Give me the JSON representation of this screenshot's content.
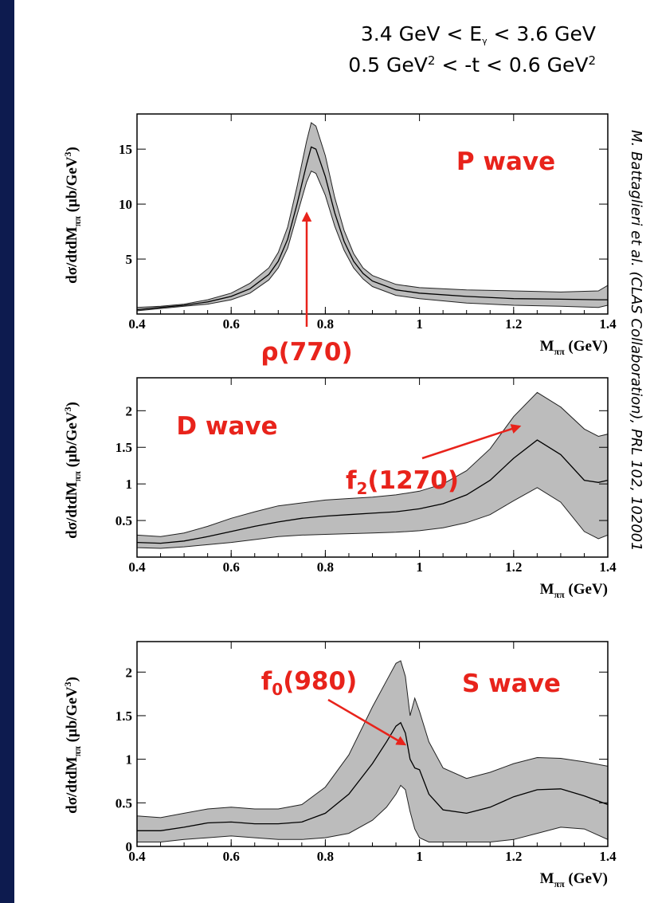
{
  "header": {
    "line1": {
      "left": "3.4 GeV < E",
      "sub": "γ",
      "right": " < 3.6 GeV"
    },
    "line2": {
      "left": "0.5 GeV",
      "sup1": "2",
      "mid": " < -t < 0.6 GeV",
      "sup2": "2"
    }
  },
  "citation": "M. Battaglieri et al. (CLAS Collaboration), PRL 102, 102001",
  "colors": {
    "background": "#0d1b4f",
    "band": "#bcbcbc",
    "curve": "#000000",
    "annotation": "#e8231b"
  },
  "chart_data": [
    {
      "type": "line",
      "ylabel": "dσ/dtdM",
      "ylabel_sub": "ππ",
      "ylabel_unit": " (μb/GeV",
      "ylabel_unit_sup": "3",
      "ylabel_close": ")",
      "xlabel": "M",
      "xlabel_sub": "ππ",
      "xlabel_unit": " (GeV)",
      "xlim": [
        0.4,
        1.4
      ],
      "ylim": [
        0,
        18.2
      ],
      "xticks": [
        0.4,
        0.6,
        0.8,
        1,
        1.2,
        1.4
      ],
      "xtick_labels": [
        "0.4",
        "0.6",
        "0.8",
        "1",
        "1.2",
        "1.4"
      ],
      "yticks": [
        5,
        10,
        15
      ],
      "ytick_labels": [
        "5",
        "10",
        "15"
      ],
      "wave_label": "P wave",
      "annotation": {
        "label": "ρ(770)",
        "x": 0.77,
        "y": 10.0
      },
      "x": [
        0.4,
        0.45,
        0.5,
        0.55,
        0.6,
        0.64,
        0.68,
        0.7,
        0.72,
        0.74,
        0.76,
        0.77,
        0.78,
        0.8,
        0.82,
        0.84,
        0.86,
        0.88,
        0.9,
        0.95,
        1.0,
        1.1,
        1.2,
        1.3,
        1.38,
        1.4
      ],
      "y": [
        0.4,
        0.6,
        0.8,
        1.1,
        1.6,
        2.3,
        3.6,
        4.8,
        6.8,
        10.0,
        13.6,
        15.2,
        15.0,
        12.5,
        9.2,
        6.6,
        4.8,
        3.7,
        3.0,
        2.2,
        1.9,
        1.6,
        1.4,
        1.35,
        1.3,
        1.3
      ],
      "y_low": [
        0.3,
        0.5,
        0.7,
        0.9,
        1.3,
        1.9,
        3.1,
        4.2,
        6.0,
        9.0,
        12.0,
        13.0,
        12.8,
        10.8,
        8.0,
        5.8,
        4.2,
        3.2,
        2.5,
        1.7,
        1.4,
        1.0,
        0.8,
        0.7,
        0.6,
        0.8
      ],
      "y_high": [
        0.6,
        0.7,
        0.9,
        1.3,
        1.9,
        2.8,
        4.2,
        5.6,
        7.9,
        11.6,
        15.7,
        17.4,
        17.1,
        14.4,
        10.6,
        7.6,
        5.5,
        4.2,
        3.5,
        2.7,
        2.4,
        2.2,
        2.1,
        2.0,
        2.1,
        2.6
      ]
    },
    {
      "type": "line",
      "ylabel": "dσ/dtdM",
      "ylabel_sub": "ππ",
      "ylabel_unit": " (μb/GeV",
      "ylabel_unit_sup": "3",
      "ylabel_close": ")",
      "xlabel": "M",
      "xlabel_sub": "ππ",
      "xlabel_unit": " (GeV)",
      "xlim": [
        0.4,
        1.4
      ],
      "ylim": [
        0,
        2.45
      ],
      "xticks": [
        0.4,
        0.6,
        0.8,
        1,
        1.2,
        1.4
      ],
      "xtick_labels": [
        "0.4",
        "0.6",
        "0.8",
        "1",
        "1.2",
        "1.4"
      ],
      "yticks": [
        0.5,
        1,
        1.5,
        2
      ],
      "ytick_labels": [
        "0.5",
        "1",
        "1.5",
        "2"
      ],
      "wave_label": "D wave",
      "annotation": {
        "label": "f",
        "label_sub": "2",
        "label_rest": "(1270)",
        "x": 1.25,
        "y": 2.05
      },
      "x": [
        0.4,
        0.45,
        0.5,
        0.55,
        0.6,
        0.65,
        0.7,
        0.75,
        0.8,
        0.85,
        0.9,
        0.95,
        1.0,
        1.05,
        1.1,
        1.15,
        1.2,
        1.25,
        1.3,
        1.35,
        1.38,
        1.4
      ],
      "y": [
        0.2,
        0.19,
        0.22,
        0.28,
        0.35,
        0.42,
        0.48,
        0.53,
        0.56,
        0.58,
        0.6,
        0.62,
        0.66,
        0.73,
        0.85,
        1.05,
        1.35,
        1.6,
        1.4,
        1.05,
        1.02,
        1.05
      ],
      "y_low": [
        0.13,
        0.12,
        0.14,
        0.17,
        0.2,
        0.24,
        0.28,
        0.3,
        0.31,
        0.32,
        0.33,
        0.34,
        0.36,
        0.4,
        0.47,
        0.58,
        0.77,
        0.95,
        0.75,
        0.35,
        0.25,
        0.3
      ],
      "y_high": [
        0.3,
        0.28,
        0.33,
        0.42,
        0.53,
        0.62,
        0.7,
        0.74,
        0.78,
        0.8,
        0.82,
        0.85,
        0.9,
        1.0,
        1.18,
        1.48,
        1.92,
        2.25,
        2.05,
        1.75,
        1.65,
        1.68
      ]
    },
    {
      "type": "line",
      "ylabel": "dσ/dtdM",
      "ylabel_sub": "ππ",
      "ylabel_unit": " (μb/GeV",
      "ylabel_unit_sup": "3",
      "ylabel_close": ")",
      "xlabel": "M",
      "xlabel_sub": "ππ",
      "xlabel_unit": " (GeV)",
      "xlim": [
        0.4,
        1.4
      ],
      "ylim": [
        0,
        2.35
      ],
      "xticks": [
        0.4,
        0.6,
        0.8,
        1,
        1.2,
        1.4
      ],
      "xtick_labels": [
        "0.4",
        "0.6",
        "0.8",
        "1",
        "1.2",
        "1.4"
      ],
      "yticks": [
        0,
        0.5,
        1,
        1.5,
        2
      ],
      "ytick_labels": [
        "0",
        "0.5",
        "1",
        "1.5",
        "2"
      ],
      "wave_label": "S wave",
      "annotation": {
        "label": "f",
        "label_sub": "0",
        "label_rest": "(980)",
        "x": 0.96,
        "y": 1.38
      },
      "x": [
        0.4,
        0.45,
        0.5,
        0.55,
        0.6,
        0.65,
        0.7,
        0.75,
        0.8,
        0.85,
        0.9,
        0.93,
        0.95,
        0.96,
        0.97,
        0.98,
        0.99,
        1.0,
        1.02,
        1.05,
        1.1,
        1.15,
        1.2,
        1.25,
        1.3,
        1.35,
        1.4
      ],
      "y": [
        0.18,
        0.18,
        0.22,
        0.27,
        0.28,
        0.26,
        0.26,
        0.28,
        0.38,
        0.6,
        0.95,
        1.2,
        1.38,
        1.42,
        1.3,
        1.0,
        0.9,
        0.88,
        0.6,
        0.42,
        0.38,
        0.45,
        0.57,
        0.65,
        0.66,
        0.58,
        0.48
      ],
      "y_low": [
        0.05,
        0.05,
        0.08,
        0.1,
        0.12,
        0.1,
        0.08,
        0.08,
        0.1,
        0.15,
        0.3,
        0.45,
        0.6,
        0.7,
        0.65,
        0.4,
        0.2,
        0.1,
        0.05,
        0.05,
        0.05,
        0.05,
        0.08,
        0.15,
        0.22,
        0.2,
        0.08
      ],
      "y_high": [
        0.35,
        0.33,
        0.38,
        0.43,
        0.45,
        0.43,
        0.43,
        0.48,
        0.68,
        1.05,
        1.6,
        1.9,
        2.1,
        2.13,
        1.95,
        1.5,
        1.7,
        1.55,
        1.2,
        0.9,
        0.78,
        0.85,
        0.95,
        1.02,
        1.01,
        0.97,
        0.92
      ]
    }
  ]
}
